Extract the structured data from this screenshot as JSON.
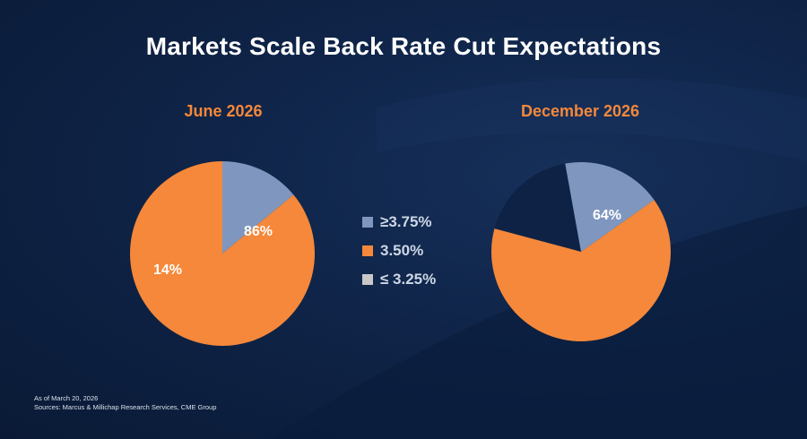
{
  "title": "Markets Scale Back Rate Cut Expectations",
  "colors": {
    "ge_3_75": "#7f97bf",
    "eq_3_50": "#f5883a",
    "le_3_25": "#c8c8c8",
    "title_accent": "#f5883a"
  },
  "legend": [
    {
      "label": "≥3.75%",
      "color": "#7f97bf"
    },
    {
      "label": "3.50%",
      "color": "#f5883a"
    },
    {
      "label": "≤ 3.25%",
      "color": "#c8c8c8"
    }
  ],
  "chart_data": [
    {
      "type": "pie",
      "title": "June 2026",
      "slices": [
        {
          "name": "≥3.75%",
          "value": 14,
          "label": "14%",
          "color": "#7f97bf"
        },
        {
          "name": "3.50%",
          "value": 86,
          "label": "86%",
          "color": "#f5883a"
        }
      ]
    },
    {
      "type": "pie",
      "title": "December 2026",
      "slices": [
        {
          "name": "≤ 3.25%",
          "value": 18,
          "label": "",
          "color": "#0e2246",
          "exploded": true
        },
        {
          "name": "≥3.75%",
          "value": 18,
          "label": "",
          "color": "#7f97bf"
        },
        {
          "name": "3.50%",
          "value": 64,
          "label": "64%",
          "color": "#f5883a"
        }
      ]
    }
  ],
  "footer": {
    "line1": "As of March 20, 2026",
    "line2": "Sources: Marcus & Millichap Research Services, CME Group"
  }
}
